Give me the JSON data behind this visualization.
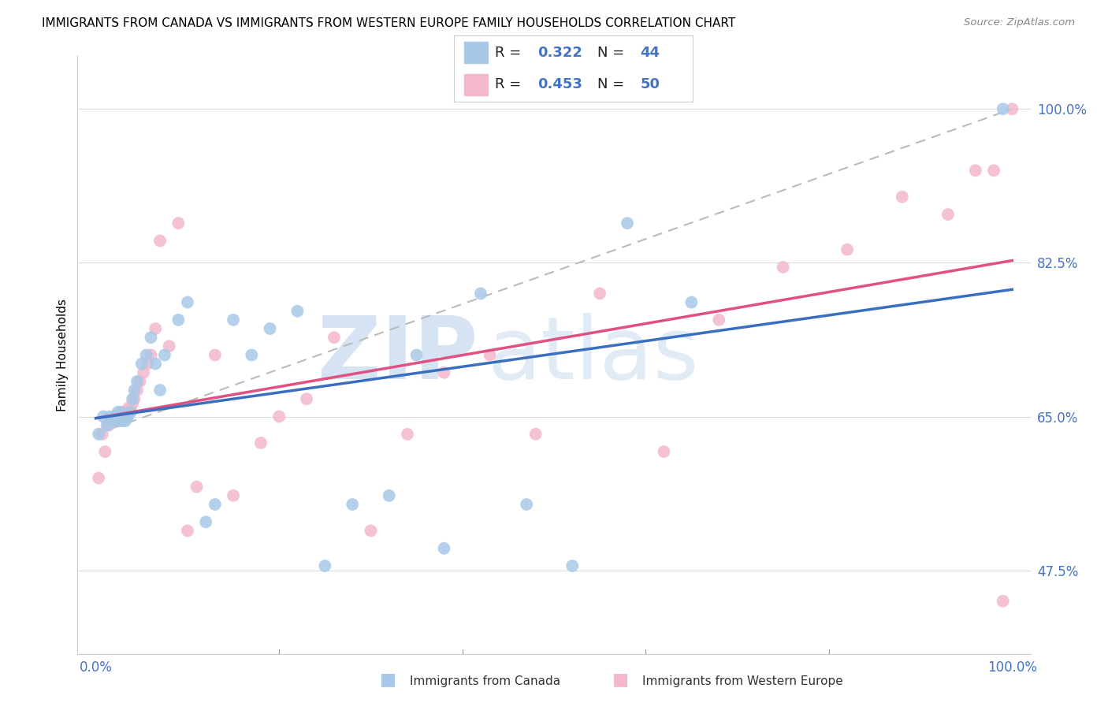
{
  "title": "IMMIGRANTS FROM CANADA VS IMMIGRANTS FROM WESTERN EUROPE FAMILY HOUSEHOLDS CORRELATION CHART",
  "source": "Source: ZipAtlas.com",
  "ylabel": "Family Households",
  "canada_R": "0.322",
  "canada_N": "44",
  "europe_R": "0.453",
  "europe_N": "50",
  "canada_color": "#a8c8e8",
  "canada_line_color": "#3a6fbf",
  "europe_color": "#f4b8cc",
  "europe_line_color": "#e05080",
  "dash_color": "#bbbbbb",
  "watermark_zip": "ZIP",
  "watermark_atlas": "atlas",
  "watermark_color_zip": "#c8ddf0",
  "watermark_color_atlas": "#c8ddf0",
  "tick_label_color": "#4472c4",
  "background_color": "#ffffff",
  "grid_color": "#dddddd",
  "title_fontsize": 11,
  "canada_x": [
    0.003,
    0.008,
    0.012,
    0.015,
    0.018,
    0.02,
    0.022,
    0.024,
    0.025,
    0.027,
    0.028,
    0.03,
    0.032,
    0.034,
    0.035,
    0.038,
    0.04,
    0.042,
    0.045,
    0.05,
    0.055,
    0.06,
    0.065,
    0.07,
    0.075,
    0.09,
    0.1,
    0.12,
    0.13,
    0.15,
    0.17,
    0.19,
    0.22,
    0.25,
    0.28,
    0.32,
    0.35,
    0.38,
    0.42,
    0.47,
    0.52,
    0.58,
    0.65,
    0.99
  ],
  "canada_y": [
    0.63,
    0.65,
    0.64,
    0.65,
    0.645,
    0.65,
    0.645,
    0.655,
    0.645,
    0.655,
    0.645,
    0.65,
    0.645,
    0.65,
    0.65,
    0.655,
    0.67,
    0.68,
    0.69,
    0.71,
    0.72,
    0.74,
    0.71,
    0.68,
    0.72,
    0.76,
    0.78,
    0.53,
    0.55,
    0.76,
    0.72,
    0.75,
    0.77,
    0.48,
    0.55,
    0.56,
    0.72,
    0.5,
    0.79,
    0.55,
    0.48,
    0.87,
    0.78,
    1.0
  ],
  "europe_x": [
    0.003,
    0.007,
    0.01,
    0.014,
    0.017,
    0.02,
    0.022,
    0.024,
    0.026,
    0.028,
    0.03,
    0.032,
    0.034,
    0.036,
    0.038,
    0.04,
    0.042,
    0.045,
    0.048,
    0.052,
    0.056,
    0.06,
    0.065,
    0.07,
    0.08,
    0.09,
    0.1,
    0.11,
    0.13,
    0.15,
    0.18,
    0.2,
    0.23,
    0.26,
    0.3,
    0.34,
    0.38,
    0.43,
    0.48,
    0.55,
    0.62,
    0.68,
    0.75,
    0.82,
    0.88,
    0.93,
    0.96,
    0.98,
    0.99,
    1.0
  ],
  "europe_y": [
    0.58,
    0.63,
    0.61,
    0.64,
    0.645,
    0.645,
    0.65,
    0.65,
    0.65,
    0.65,
    0.655,
    0.65,
    0.655,
    0.66,
    0.66,
    0.665,
    0.67,
    0.68,
    0.69,
    0.7,
    0.71,
    0.72,
    0.75,
    0.85,
    0.73,
    0.87,
    0.52,
    0.57,
    0.72,
    0.56,
    0.62,
    0.65,
    0.67,
    0.74,
    0.52,
    0.63,
    0.7,
    0.72,
    0.63,
    0.79,
    0.61,
    0.76,
    0.82,
    0.84,
    0.9,
    0.88,
    0.93,
    0.93,
    0.44,
    1.0
  ],
  "xlim": [
    -0.02,
    1.02
  ],
  "ylim": [
    0.38,
    1.06
  ],
  "ytick_vals": [
    0.475,
    0.65,
    0.825,
    1.0
  ],
  "ytick_labels": [
    "47.5%",
    "65.0%",
    "82.5%",
    "100.0%"
  ],
  "xtick_vals": [
    0.0,
    0.2,
    0.4,
    0.6,
    0.8,
    1.0
  ],
  "xtick_labels": [
    "0.0%",
    "",
    "",
    "",
    "",
    "100.0%"
  ]
}
